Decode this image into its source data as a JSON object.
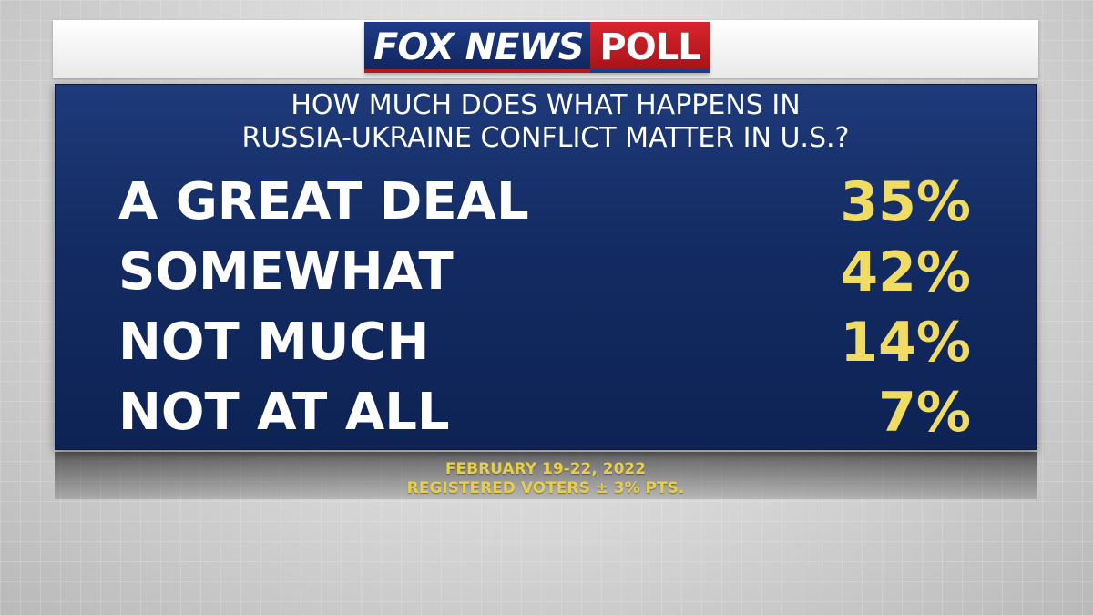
{
  "logo": {
    "fox": "FOX NEWS",
    "poll": "POLL"
  },
  "chart_data": {
    "type": "table",
    "title": "HOW MUCH DOES WHAT HAPPENS IN RUSSIA-UKRAINE CONFLICT MATTER IN U.S.?",
    "title_lines": [
      "HOW MUCH DOES WHAT HAPPENS IN",
      "RUSSIA-UKRAINE CONFLICT MATTER IN U.S.?"
    ],
    "categories": [
      "A GREAT DEAL",
      "SOMEWHAT",
      "NOT MUCH",
      "NOT AT ALL"
    ],
    "values": [
      35,
      42,
      14,
      7
    ],
    "value_labels": [
      "35%",
      "42%",
      "14%",
      "7%"
    ],
    "unit": "%"
  },
  "footer": {
    "dates": "FEBRUARY 19-22, 2022",
    "sample": "REGISTERED VOTERS ± 3% PTS."
  },
  "colors": {
    "panel": "#132b62",
    "label_text": "#ffffff",
    "value_text": "#f1dc63",
    "footer_text": "#e9cf47",
    "poll_red": "#d8262d"
  }
}
